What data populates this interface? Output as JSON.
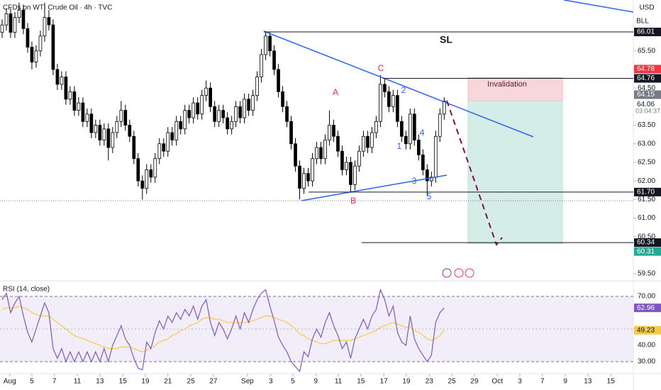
{
  "chart_data": {
    "type": "candlestick",
    "title": "CFDs on WTI Crude Oil · 4h · TVC",
    "currency": "USD",
    "unit": "BLL",
    "up_color": "#ffffff",
    "down_color": "#000000",
    "outline_color": "#000000",
    "candles": [
      [
        66.0,
        66.35,
        65.85,
        66.2
      ],
      [
        66.2,
        66.65,
        66.05,
        66.5
      ],
      [
        66.5,
        66.65,
        65.85,
        66.0
      ],
      [
        66.0,
        66.55,
        65.85,
        66.4
      ],
      [
        66.4,
        66.8,
        66.25,
        66.6
      ],
      [
        66.6,
        66.75,
        65.95,
        66.1
      ],
      [
        66.1,
        66.25,
        65.45,
        65.6
      ],
      [
        65.6,
        65.75,
        65.0,
        65.2
      ],
      [
        65.2,
        65.65,
        65.05,
        65.5
      ],
      [
        65.5,
        66.05,
        65.35,
        65.9
      ],
      [
        65.9,
        66.8,
        65.75,
        66.4
      ],
      [
        66.4,
        66.6,
        66.05,
        66.2
      ],
      [
        66.2,
        66.35,
        64.85,
        65.0
      ],
      [
        65.0,
        65.15,
        64.45,
        64.6
      ],
      [
        64.6,
        64.95,
        64.45,
        64.8
      ],
      [
        64.8,
        64.95,
        64.05,
        64.2
      ],
      [
        64.2,
        64.55,
        64.05,
        64.4
      ],
      [
        64.4,
        64.55,
        63.75,
        63.9
      ],
      [
        63.9,
        64.25,
        63.75,
        64.1
      ],
      [
        64.1,
        64.25,
        63.45,
        63.6
      ],
      [
        63.6,
        63.95,
        63.45,
        63.8
      ],
      [
        63.8,
        63.95,
        63.15,
        63.3
      ],
      [
        63.3,
        63.65,
        63.15,
        63.5
      ],
      [
        63.5,
        63.65,
        62.95,
        63.1
      ],
      [
        63.1,
        63.55,
        62.95,
        63.4
      ],
      [
        63.4,
        63.55,
        62.55,
        62.9
      ],
      [
        62.9,
        63.45,
        62.75,
        63.3
      ],
      [
        63.3,
        63.75,
        63.15,
        63.6
      ],
      [
        63.6,
        64.15,
        63.45,
        63.9
      ],
      [
        63.9,
        64.05,
        63.35,
        63.5
      ],
      [
        63.5,
        63.65,
        63.05,
        63.2
      ],
      [
        63.2,
        63.35,
        62.45,
        62.6
      ],
      [
        62.6,
        62.75,
        61.85,
        62.0
      ],
      [
        62.0,
        62.15,
        61.5,
        61.8
      ],
      [
        61.8,
        62.45,
        61.65,
        62.3
      ],
      [
        62.3,
        62.45,
        61.95,
        62.1
      ],
      [
        62.1,
        62.75,
        61.95,
        62.6
      ],
      [
        62.6,
        63.15,
        62.45,
        63.0
      ],
      [
        63.0,
        63.15,
        62.65,
        62.8
      ],
      [
        62.8,
        63.45,
        62.65,
        63.3
      ],
      [
        63.3,
        63.45,
        62.95,
        63.1
      ],
      [
        63.1,
        63.75,
        62.95,
        63.6
      ],
      [
        63.6,
        63.75,
        63.25,
        63.4
      ],
      [
        63.4,
        64.05,
        63.25,
        63.9
      ],
      [
        63.9,
        64.05,
        63.55,
        63.7
      ],
      [
        63.7,
        64.25,
        63.55,
        64.1
      ],
      [
        64.1,
        64.25,
        63.65,
        63.8
      ],
      [
        63.8,
        64.45,
        63.65,
        64.3
      ],
      [
        64.3,
        64.7,
        64.15,
        64.5
      ],
      [
        64.5,
        64.65,
        63.85,
        64.0
      ],
      [
        64.0,
        64.15,
        63.45,
        63.6
      ],
      [
        63.6,
        64.05,
        63.45,
        63.9
      ],
      [
        63.9,
        64.05,
        63.55,
        63.7
      ],
      [
        63.7,
        63.85,
        63.25,
        63.4
      ],
      [
        63.4,
        63.75,
        63.25,
        63.6
      ],
      [
        63.6,
        64.15,
        63.45,
        64.0
      ],
      [
        64.0,
        64.15,
        63.55,
        63.7
      ],
      [
        63.7,
        64.35,
        63.55,
        64.2
      ],
      [
        64.2,
        64.35,
        63.75,
        63.9
      ],
      [
        63.9,
        64.45,
        63.75,
        64.3
      ],
      [
        64.3,
        64.95,
        64.15,
        64.8
      ],
      [
        64.8,
        65.55,
        64.65,
        65.4
      ],
      [
        65.4,
        66.01,
        65.25,
        65.9
      ],
      [
        65.9,
        66.0,
        65.35,
        65.5
      ],
      [
        65.5,
        65.65,
        64.85,
        65.0
      ],
      [
        65.0,
        65.15,
        64.25,
        64.4
      ],
      [
        64.4,
        64.55,
        63.85,
        64.0
      ],
      [
        64.0,
        64.15,
        63.45,
        63.6
      ],
      [
        63.6,
        63.75,
        62.85,
        63.0
      ],
      [
        63.0,
        63.15,
        62.25,
        62.4
      ],
      [
        62.4,
        62.55,
        61.5,
        61.8
      ],
      [
        61.8,
        62.35,
        61.65,
        62.2
      ],
      [
        62.2,
        62.35,
        61.85,
        62.0
      ],
      [
        62.0,
        62.75,
        61.85,
        62.6
      ],
      [
        62.6,
        63.05,
        62.45,
        62.9
      ],
      [
        62.9,
        63.05,
        62.45,
        62.6
      ],
      [
        62.6,
        63.25,
        62.45,
        63.1
      ],
      [
        63.1,
        63.9,
        62.95,
        63.5
      ],
      [
        63.5,
        63.65,
        63.05,
        63.2
      ],
      [
        63.2,
        63.35,
        62.65,
        62.8
      ],
      [
        62.8,
        62.95,
        62.15,
        62.3
      ],
      [
        62.3,
        62.65,
        62.15,
        62.5
      ],
      [
        62.5,
        62.65,
        61.7,
        61.9
      ],
      [
        61.9,
        62.55,
        61.75,
        62.4
      ],
      [
        62.4,
        62.95,
        62.25,
        62.8
      ],
      [
        62.8,
        63.35,
        62.65,
        63.2
      ],
      [
        63.2,
        63.35,
        62.75,
        62.9
      ],
      [
        62.9,
        63.45,
        62.75,
        63.3
      ],
      [
        63.3,
        63.75,
        63.15,
        63.6
      ],
      [
        63.6,
        64.85,
        63.45,
        64.6
      ],
      [
        64.6,
        64.75,
        64.25,
        64.4
      ],
      [
        64.4,
        64.55,
        63.85,
        64.0
      ],
      [
        64.0,
        64.45,
        63.85,
        64.3
      ],
      [
        64.3,
        64.45,
        63.45,
        63.6
      ],
      [
        63.6,
        63.75,
        63.05,
        63.2
      ],
      [
        63.2,
        63.35,
        62.85,
        63.0
      ],
      [
        63.0,
        63.95,
        62.85,
        63.8
      ],
      [
        63.8,
        63.95,
        62.95,
        63.1
      ],
      [
        63.1,
        63.25,
        62.55,
        62.7
      ],
      [
        62.7,
        62.85,
        62.15,
        62.3
      ],
      [
        62.3,
        62.45,
        61.6,
        62.0
      ],
      [
        62.0,
        62.25,
        61.85,
        62.1
      ],
      [
        62.1,
        63.35,
        61.95,
        63.2
      ],
      [
        63.2,
        63.95,
        63.05,
        63.8
      ],
      [
        63.8,
        64.25,
        63.65,
        64.15
      ]
    ],
    "xlim": [
      -0.5,
      148.5
    ],
    "xticks": [
      {
        "value": 1.8,
        "label": "Aug"
      },
      {
        "value": 7.0,
        "label": "5"
      },
      {
        "value": 12.3,
        "label": "7"
      },
      {
        "value": 17.7,
        "label": "11"
      },
      {
        "value": 23.0,
        "label": "13"
      },
      {
        "value": 28.4,
        "label": "15"
      },
      {
        "value": 33.7,
        "label": "19"
      },
      {
        "value": 39.0,
        "label": "21"
      },
      {
        "value": 44.4,
        "label": "25"
      },
      {
        "value": 49.7,
        "label": "27"
      },
      {
        "value": 57.7,
        "label": "Sep"
      },
      {
        "value": 63.2,
        "label": "3"
      },
      {
        "value": 68.4,
        "label": "5"
      },
      {
        "value": 73.8,
        "label": "9"
      },
      {
        "value": 79.1,
        "label": "11"
      },
      {
        "value": 84.4,
        "label": "15"
      },
      {
        "value": 89.8,
        "label": "17"
      },
      {
        "value": 95.1,
        "label": "19"
      },
      {
        "value": 100.5,
        "label": "23"
      },
      {
        "value": 105.8,
        "label": "25"
      },
      {
        "value": 111.1,
        "label": "29"
      },
      {
        "value": 116.5,
        "label": "Oct"
      },
      {
        "value": 121.8,
        "label": "3"
      },
      {
        "value": 127.1,
        "label": "7"
      },
      {
        "value": 132.5,
        "label": "9"
      },
      {
        "value": 137.8,
        "label": "13"
      },
      {
        "value": 143.2,
        "label": "15"
      }
    ],
    "ylim": [
      59.33,
      66.87
    ],
    "yticks": [
      {
        "value": 65.5,
        "label": "65.50"
      },
      {
        "value": 64.5,
        "label": "64.50"
      },
      {
        "value": 63.5,
        "label": "63.50"
      },
      {
        "value": 63.0,
        "label": "63.00"
      },
      {
        "value": 62.5,
        "label": "62.50"
      },
      {
        "value": 62.0,
        "label": "62.00"
      },
      {
        "value": 61.5,
        "label": "61.50"
      },
      {
        "value": 61.0,
        "label": "61.00"
      },
      {
        "value": 60.5,
        "label": "60.50"
      },
      {
        "value": 59.5,
        "label": "59.50"
      }
    ],
    "price_labels": [
      {
        "value": 66.01,
        "bg": "#131722",
        "fg": "#ffffff"
      },
      {
        "value": 64.78,
        "bg": "#f23645",
        "fg": "#ffffff"
      },
      {
        "value": 64.76,
        "bg": "#131722",
        "fg": "#ffffff"
      },
      {
        "value": 64.15,
        "bg": "#787b86",
        "fg": "#ffffff"
      },
      {
        "value": 64.06,
        "bg": "#ffffff",
        "fg": "#131722"
      },
      {
        "value": {
          "value": 61.7,
          "label": "61.70"
        },
        "bg": "#131722",
        "fg": "#ffffff"
      },
      {
        "value": 60.34,
        "bg": "#131722",
        "fg": "#ffffff"
      },
      {
        "value": 60.31,
        "bg": "#22ab94",
        "fg": "#ffffff"
      }
    ],
    "countdown": "03:04:37",
    "annotations": {
      "sl": "SL",
      "invalidation": "Invalidation",
      "a": "A",
      "b": "B",
      "c": "C",
      "w1": "1",
      "w2": "2",
      "w3": "3",
      "w4": "4",
      "w5": "5"
    },
    "rsi": {
      "title": "RSI (14, close)",
      "color": "#7e57c2",
      "ma_color": "#f7c948",
      "ylim": [
        23.5,
        77.8
      ],
      "yticks": [
        {
          "value": 70,
          "label": "70.00"
        },
        {
          "value": 40,
          "label": "40.00"
        },
        {
          "value": 30,
          "label": "30.00"
        }
      ],
      "values": [
        68,
        72,
        60,
        66,
        70,
        58,
        48,
        42,
        50,
        58,
        66,
        60,
        38,
        32,
        38,
        30,
        36,
        30,
        36,
        30,
        36,
        30,
        36,
        30,
        38,
        30,
        40,
        46,
        52,
        44,
        40,
        32,
        26,
        25,
        42,
        38,
        48,
        55,
        50,
        58,
        54,
        60,
        56,
        62,
        58,
        64,
        56,
        64,
        68,
        54,
        46,
        54,
        50,
        44,
        50,
        58,
        50,
        60,
        54,
        62,
        68,
        72,
        74,
        64,
        55,
        45,
        40,
        36,
        30,
        27,
        24,
        36,
        33,
        44,
        50,
        45,
        54,
        60,
        52,
        46,
        38,
        42,
        32,
        44,
        50,
        56,
        50,
        58,
        62,
        74,
        68,
        58,
        64,
        48,
        42,
        40,
        58,
        44,
        38,
        34,
        30,
        34,
        54,
        60,
        62.96
      ],
      "ma": [
        62,
        63,
        63,
        63,
        64,
        63,
        62,
        60,
        59,
        58,
        58,
        58,
        56,
        54,
        52,
        50,
        48,
        46,
        45,
        44,
        43,
        42,
        41,
        40,
        39,
        38,
        38,
        38,
        39,
        39,
        39,
        38,
        37,
        36,
        37,
        38,
        40,
        42,
        43,
        44,
        46,
        47,
        49,
        50,
        52,
        53,
        54,
        56,
        57,
        57,
        56,
        56,
        55,
        54,
        54,
        54,
        54,
        54,
        54,
        55,
        56,
        57,
        58,
        58,
        57,
        56,
        55,
        54,
        52,
        50,
        47,
        46,
        44,
        43,
        42,
        41,
        41,
        42,
        43,
        43,
        43,
        43,
        43,
        44,
        45,
        46,
        47,
        48,
        49,
        51,
        52,
        53,
        54,
        53,
        52,
        51,
        51,
        49,
        48,
        46,
        44,
        43,
        44,
        46,
        49.23
      ]
    }
  }
}
